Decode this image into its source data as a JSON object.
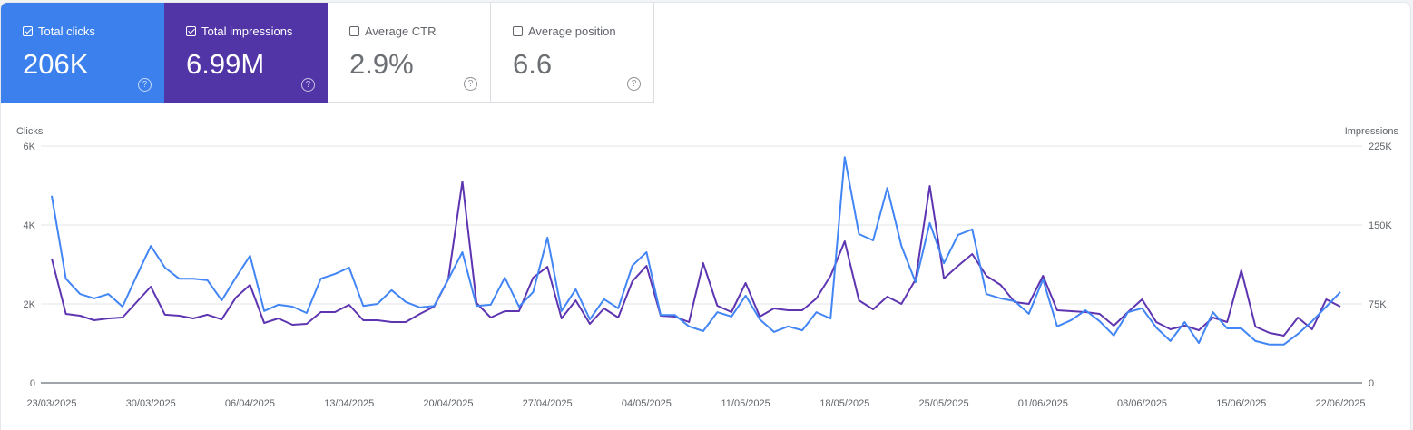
{
  "metrics": [
    {
      "label": "Total clicks",
      "value": "206K",
      "checked": true,
      "color": "#3b80ec"
    },
    {
      "label": "Total impressions",
      "value": "6.99M",
      "checked": true,
      "color": "#5134a6"
    },
    {
      "label": "Average CTR",
      "value": "2.9%",
      "checked": false
    },
    {
      "label": "Average position",
      "value": "6.6",
      "checked": false
    }
  ],
  "help_glyph": "?",
  "chart_data": {
    "type": "line",
    "left_axis": {
      "label": "Clicks",
      "ticks": [
        "0",
        "2K",
        "4K",
        "6K"
      ],
      "tick_values": [
        0,
        2000,
        4000,
        6000
      ],
      "range": [
        0,
        6000
      ]
    },
    "right_axis": {
      "label": "Impressions",
      "ticks": [
        "0",
        "75K",
        "150K",
        "225K"
      ],
      "tick_values": [
        0,
        75000,
        150000,
        225000
      ],
      "range": [
        0,
        225000
      ]
    },
    "x_tick_labels": [
      "23/03/2025",
      "30/03/2025",
      "06/04/2025",
      "13/04/2025",
      "20/04/2025",
      "27/04/2025",
      "04/05/2025",
      "11/05/2025",
      "18/05/2025",
      "25/05/2025",
      "01/06/2025",
      "08/06/2025",
      "15/06/2025",
      "22/06/2025"
    ],
    "grid": true,
    "x": [
      "23/03/2025",
      "24/03/2025",
      "25/03/2025",
      "26/03/2025",
      "27/03/2025",
      "28/03/2025",
      "29/03/2025",
      "30/03/2025",
      "31/03/2025",
      "01/04/2025",
      "02/04/2025",
      "03/04/2025",
      "04/04/2025",
      "05/04/2025",
      "06/04/2025",
      "07/04/2025",
      "08/04/2025",
      "09/04/2025",
      "10/04/2025",
      "11/04/2025",
      "12/04/2025",
      "13/04/2025",
      "14/04/2025",
      "15/04/2025",
      "16/04/2025",
      "17/04/2025",
      "18/04/2025",
      "19/04/2025",
      "20/04/2025",
      "21/04/2025",
      "22/04/2025",
      "23/04/2025",
      "24/04/2025",
      "25/04/2025",
      "26/04/2025",
      "27/04/2025",
      "28/04/2025",
      "29/04/2025",
      "30/04/2025",
      "01/05/2025",
      "02/05/2025",
      "03/05/2025",
      "04/05/2025",
      "05/05/2025",
      "06/05/2025",
      "07/05/2025",
      "08/05/2025",
      "09/05/2025",
      "10/05/2025",
      "11/05/2025",
      "12/05/2025",
      "13/05/2025",
      "14/05/2025",
      "15/05/2025",
      "16/05/2025",
      "17/05/2025",
      "18/05/2025",
      "19/05/2025",
      "20/05/2025",
      "21/05/2025",
      "22/05/2025",
      "23/05/2025",
      "24/05/2025",
      "25/05/2025",
      "26/05/2025",
      "27/05/2025",
      "28/05/2025",
      "29/05/2025",
      "30/05/2025",
      "31/05/2025",
      "01/06/2025",
      "02/06/2025",
      "03/06/2025",
      "04/06/2025",
      "05/06/2025",
      "06/06/2025",
      "07/06/2025",
      "08/06/2025",
      "09/06/2025",
      "10/06/2025",
      "11/06/2025",
      "12/06/2025",
      "13/06/2025",
      "14/06/2025",
      "15/06/2025",
      "16/06/2025",
      "17/06/2025",
      "18/06/2025",
      "19/06/2025",
      "20/06/2025",
      "21/06/2025",
      "22/06/2025"
    ],
    "series": [
      {
        "name": "Clicks",
        "axis": "left",
        "color": "#4285f4",
        "values": [
          4740,
          2640,
          2250,
          2140,
          2250,
          1930,
          2710,
          3470,
          2920,
          2640,
          2640,
          2600,
          2090,
          2670,
          3220,
          1820,
          1980,
          1930,
          1770,
          2640,
          2760,
          2920,
          1950,
          2000,
          2350,
          2050,
          1910,
          1950,
          2620,
          3310,
          1950,
          1980,
          2670,
          1930,
          2300,
          3680,
          1820,
          2370,
          1610,
          2120,
          1890,
          2970,
          3310,
          1720,
          1720,
          1430,
          1310,
          1790,
          1680,
          2210,
          1610,
          1290,
          1430,
          1330,
          1790,
          1630,
          5720,
          3770,
          3610,
          4940,
          3470,
          2550,
          4050,
          3030,
          3750,
          3890,
          2250,
          2140,
          2070,
          1750,
          2620,
          1430,
          1590,
          1840,
          1560,
          1200,
          1790,
          1890,
          1400,
          1060,
          1540,
          1010,
          1790,
          1380,
          1380,
          1060,
          970,
          970,
          1240,
          1560,
          1930,
          2300
        ]
      },
      {
        "name": "Impressions",
        "axis": "right",
        "color": "#5e35b1",
        "values": [
          118100,
          65500,
          63800,
          59500,
          61200,
          62100,
          76700,
          91400,
          64700,
          63800,
          61200,
          64700,
          60300,
          81000,
          93100,
          56900,
          61200,
          55200,
          56000,
          67200,
          67200,
          74100,
          59500,
          59500,
          57800,
          57800,
          65500,
          72400,
          98300,
          191400,
          75900,
          62100,
          68100,
          68100,
          100000,
          110300,
          61200,
          78400,
          56000,
          70700,
          62100,
          96500,
          111200,
          63800,
          62900,
          57800,
          113800,
          73300,
          67200,
          94800,
          62900,
          70700,
          69000,
          69000,
          80200,
          101700,
          134500,
          78400,
          69800,
          81900,
          75000,
          98300,
          187100,
          99100,
          111200,
          122400,
          101700,
          93100,
          76700,
          75000,
          101700,
          69000,
          68100,
          67200,
          65500,
          54300,
          67200,
          79300,
          57800,
          50900,
          54300,
          50000,
          62100,
          57800,
          106900,
          53400,
          47400,
          44800,
          62100,
          50900,
          79300,
          72400
        ]
      }
    ]
  }
}
